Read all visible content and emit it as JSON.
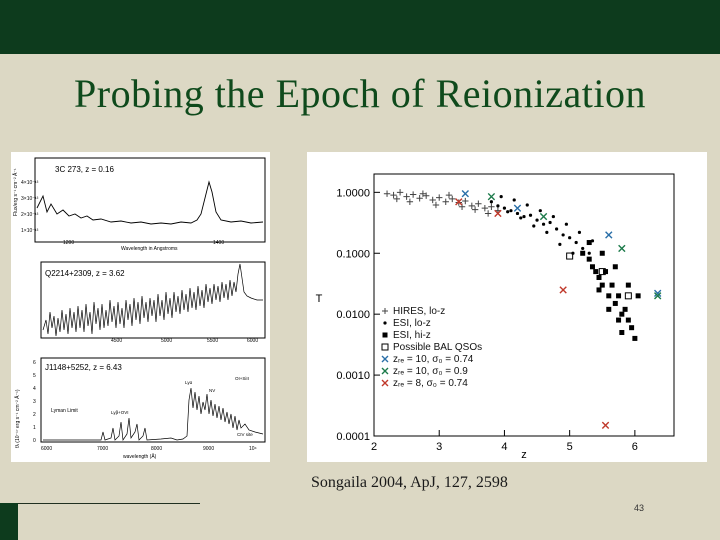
{
  "slide": {
    "title": "Probing the Epoch of Reionization",
    "citation": "Songaila 2004, ApJ, 127, 2598",
    "page_number": "43",
    "colors": {
      "header_bar": "#0d3b1d",
      "background": "#dcd8c4",
      "title": "#0f4a1c"
    }
  },
  "left_figure": {
    "panels": [
      {
        "label": "3C 273, z = 0.16",
        "ylabel": "Flux/erg s⁻¹ cm⁻² Å⁻¹",
        "xlabel": "Wavelength in Angstroms",
        "xticks": [
          "1200",
          "1400"
        ],
        "yticks": [
          "4×10⁻¹³",
          "3×10⁻¹³",
          "2×10⁻¹³",
          "1×10⁻¹³"
        ]
      },
      {
        "label": "Q2214+2309, z = 3.62",
        "xticks": [
          "4500",
          "5000",
          "5500",
          "6000"
        ]
      },
      {
        "label": "J1148+5252, z = 6.43",
        "ylabel": "fλ (10⁻¹⁷ erg s⁻¹ cm⁻² Å⁻¹)",
        "xlabel": "wavelength (Å)",
        "xticks": [
          "6000",
          "7000",
          "8000",
          "9000",
          "10⁴"
        ],
        "yticks": [
          "0",
          "1",
          "2",
          "3",
          "4",
          "5",
          "6"
        ],
        "annotations": [
          "Lyman Limit",
          "Lyβ+OVI",
          "Lyα",
          "NV",
          "CIV site",
          "OI+SiII"
        ]
      }
    ]
  },
  "right_figure": {
    "chart_data": {
      "type": "scatter",
      "xlabel": "z",
      "ylabel": "T",
      "xlim": [
        2,
        6.6
      ],
      "ylim": [
        0.0001,
        2
      ],
      "yscale": "log",
      "xticks": [
        "2",
        "3",
        "4",
        "5",
        "6"
      ],
      "yticks": [
        "1.0000",
        "0.1000",
        "0.0100",
        "0.0010",
        "0.0001"
      ],
      "legend_position": "bottom-left",
      "legend": [
        {
          "symbol": "plus",
          "color": "#444444",
          "text": "HIRES, lo-z"
        },
        {
          "symbol": "dot",
          "color": "#000000",
          "text": "ESI, lo-z"
        },
        {
          "symbol": "square",
          "color": "#000000",
          "text": "ESI, hi-z"
        },
        {
          "symbol": "open-square",
          "color": "#000000",
          "text": "Possible BAL QSOs"
        },
        {
          "symbol": "x",
          "color": "#2a6fa8",
          "text": "zᵣₑ = 10, σ₀ = 0.74"
        },
        {
          "symbol": "x",
          "color": "#1c7a4a",
          "text": "zᵣₑ = 10, σ₀ = 0.9"
        },
        {
          "symbol": "x",
          "color": "#c0392b",
          "text": "zᵣₑ = 8, σ₀ = 0.74"
        }
      ],
      "series": [
        {
          "symbol": "plus",
          "color": "#444444",
          "x": [
            2.2,
            2.3,
            2.4,
            2.5,
            2.6,
            2.7,
            2.8,
            2.9,
            3.0,
            3.1,
            3.2,
            3.3,
            3.4,
            3.5,
            3.6,
            3.7,
            3.8,
            3.9,
            2.35,
            2.55,
            2.75,
            2.95,
            3.15,
            3.35,
            3.55,
            3.75
          ],
          "y": [
            0.95,
            0.9,
            1.0,
            0.85,
            0.92,
            0.8,
            0.88,
            0.75,
            0.82,
            0.7,
            0.78,
            0.68,
            0.72,
            0.6,
            0.65,
            0.55,
            0.58,
            0.5,
            0.78,
            0.7,
            0.95,
            0.62,
            0.9,
            0.58,
            0.52,
            0.45
          ]
        },
        {
          "symbol": "dot",
          "color": "#000000",
          "x": [
            3.8,
            3.9,
            4.0,
            4.1,
            4.2,
            4.3,
            4.4,
            4.5,
            4.6,
            4.7,
            4.8,
            4.9,
            5.0,
            5.1,
            5.2,
            5.3,
            3.95,
            4.15,
            4.35,
            4.55,
            4.75,
            4.95,
            5.15,
            5.35,
            4.05,
            4.25,
            4.45,
            4.65,
            4.85,
            5.05
          ],
          "y": [
            0.7,
            0.6,
            0.55,
            0.5,
            0.45,
            0.4,
            0.42,
            0.35,
            0.3,
            0.32,
            0.25,
            0.2,
            0.18,
            0.15,
            0.12,
            0.1,
            0.85,
            0.75,
            0.62,
            0.5,
            0.4,
            0.3,
            0.22,
            0.16,
            0.48,
            0.38,
            0.28,
            0.22,
            0.14,
            0.1
          ]
        },
        {
          "symbol": "square",
          "color": "#000000",
          "x": [
            5.2,
            5.3,
            5.35,
            5.4,
            5.45,
            5.5,
            5.55,
            5.6,
            5.65,
            5.7,
            5.75,
            5.8,
            5.85,
            5.9,
            5.95,
            6.0,
            5.3,
            5.5,
            5.7,
            5.9,
            5.6,
            5.8,
            6.05,
            5.45,
            5.75
          ],
          "y": [
            0.1,
            0.08,
            0.06,
            0.05,
            0.04,
            0.03,
            0.05,
            0.02,
            0.03,
            0.015,
            0.02,
            0.01,
            0.012,
            0.008,
            0.006,
            0.004,
            0.15,
            0.1,
            0.06,
            0.03,
            0.012,
            0.005,
            0.02,
            0.025,
            0.008
          ]
        },
        {
          "symbol": "open-square",
          "color": "#000000",
          "x": [
            5.0,
            5.5,
            5.9
          ],
          "y": [
            0.09,
            0.05,
            0.02
          ]
        },
        {
          "symbol": "x",
          "color": "#2a6fa8",
          "x": [
            3.4,
            4.2,
            5.6,
            6.35
          ],
          "y": [
            0.95,
            0.55,
            0.2,
            0.022
          ]
        },
        {
          "symbol": "x",
          "color": "#1c7a4a",
          "x": [
            3.8,
            4.6,
            5.8,
            6.35
          ],
          "y": [
            0.85,
            0.4,
            0.12,
            0.02
          ]
        },
        {
          "symbol": "x",
          "color": "#c0392b",
          "x": [
            3.3,
            3.9,
            4.9,
            5.55
          ],
          "y": [
            0.7,
            0.45,
            0.025,
            0.00015
          ]
        }
      ]
    }
  }
}
